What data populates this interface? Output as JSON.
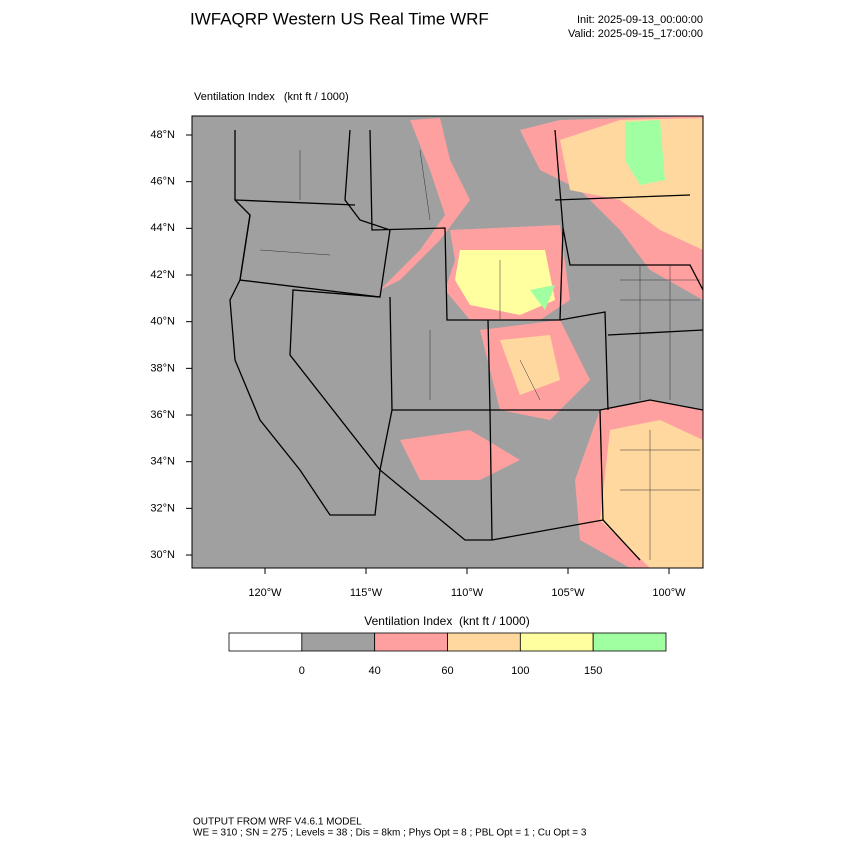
{
  "header": {
    "title": "IWFAQRP Western US Real Time WRF",
    "init": "Init: 2025-09-13_00:00:00",
    "valid": "Valid: 2025-09-15_17:00:00"
  },
  "field_label": "Ventilation Index   (knt ft / 1000)",
  "map": {
    "lat_labels": [
      "48°N",
      "46°N",
      "44°N",
      "42°N",
      "40°N",
      "38°N",
      "36°N",
      "34°N",
      "32°N",
      "30°N"
    ],
    "lon_labels": [
      "120°W",
      "115°W",
      "110°W",
      "105°W",
      "100°W"
    ]
  },
  "colorbar": {
    "label": "Ventilation Index  (knt ft / 1000)",
    "colors": [
      "#ffffff",
      "#a0a0a0",
      "#ffa0a0",
      "#ffd8a0",
      "#ffffa0",
      "#a0ffa0"
    ],
    "ticks": [
      0,
      40,
      60,
      100,
      150
    ]
  },
  "footer": {
    "line1": "OUTPUT FROM WRF V4.6.1 MODEL",
    "line2": "WE = 310 ; SN = 275 ; Levels = 38 ; Dis = 8km ; Phys Opt = 8 ; PBL Opt = 1 ; Cu Opt = 3"
  }
}
